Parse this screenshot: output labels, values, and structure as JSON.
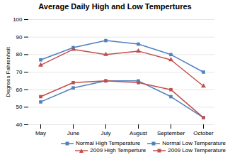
{
  "chart_data": {
    "type": "line",
    "title": "Average Daily High and Low Tempertures",
    "ylabel": "Degrees Fahrenheit",
    "categories": [
      "May",
      "June",
      "July",
      "August",
      "September",
      "October"
    ],
    "series": [
      {
        "name": "Normal High Temperature",
        "color": "#4f81bd",
        "marker": "square",
        "line_style": "solid",
        "values": [
          77,
          84,
          88,
          86,
          80,
          70
        ]
      },
      {
        "name": "Normal Low Temperature",
        "color": "#4f81bd",
        "marker": "square",
        "line_style": "solid",
        "values": [
          53,
          61,
          65,
          65,
          56,
          44
        ]
      },
      {
        "name": "2009 High Temperture",
        "color": "#c0504d",
        "marker": "triangle",
        "line_style": "solid",
        "values": [
          74,
          83,
          80,
          82,
          77,
          62
        ]
      },
      {
        "name": "2009 Low Temperature",
        "color": "#c0504d",
        "marker": "square",
        "line_style": "solid",
        "values": [
          56,
          64,
          65,
          64,
          60,
          44
        ]
      }
    ],
    "ylim": [
      40,
      100
    ],
    "yticks": [
      40,
      50,
      60,
      70,
      80,
      90,
      100
    ],
    "grid": true,
    "legend": "lower right"
  }
}
